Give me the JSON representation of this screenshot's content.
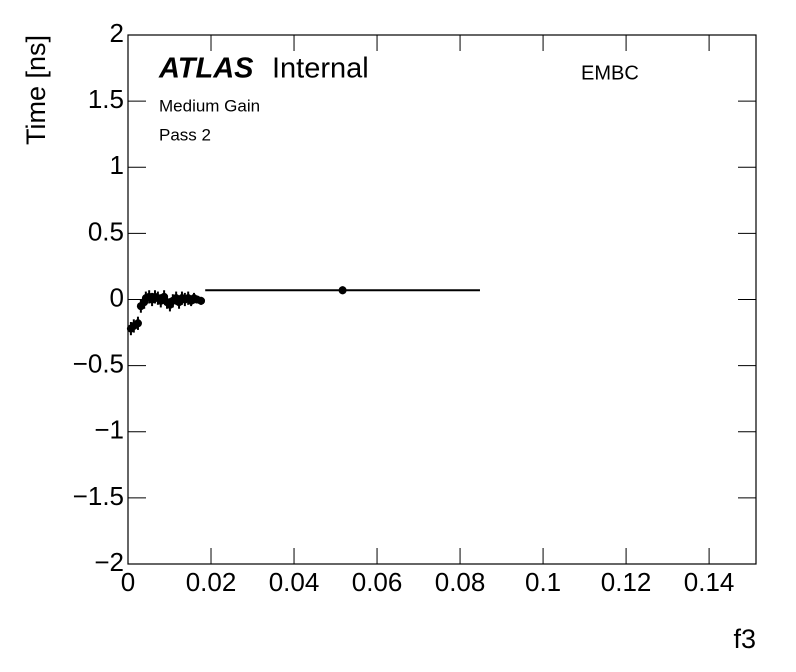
{
  "chart_data": {
    "type": "scatter",
    "experiment": "ATLAS",
    "status": "Internal",
    "region": "EMBC",
    "annotations": [
      "Medium Gain",
      "Pass 2"
    ],
    "xlabel": "f3",
    "ylabel": "Time [ns]",
    "x": [
      0.0007,
      0.0014,
      0.0024,
      0.0031,
      0.0039,
      0.0043,
      0.0051,
      0.0058,
      0.0065,
      0.0072,
      0.0079,
      0.0087,
      0.0094,
      0.0101,
      0.0108,
      0.0116,
      0.0123,
      0.013,
      0.0137,
      0.0145,
      0.0152,
      0.0159,
      0.0166,
      0.0176,
      0.0517
    ],
    "xerr": [
      0.0003,
      0.0003,
      0.0003,
      0.0003,
      0.0003,
      0.0003,
      0.0003,
      0.0003,
      0.0003,
      0.0003,
      0.0003,
      0.0003,
      0.0003,
      0.0003,
      0.0003,
      0.0003,
      0.0003,
      0.0003,
      0.0003,
      0.0003,
      0.0003,
      0.0003,
      0.0003,
      0.0005,
      0.0331
    ],
    "series": [
      {
        "name": "Time",
        "color": "#000000",
        "values": [
          -0.22,
          -0.2,
          -0.18,
          -0.05,
          -0.02,
          0.01,
          0.02,
          0.0,
          0.02,
          0.01,
          -0.01,
          0.02,
          -0.02,
          -0.04,
          -0.01,
          0.01,
          -0.02,
          0.01,
          0.0,
          0.01,
          -0.01,
          0.01,
          0.0,
          -0.01,
          0.07
        ],
        "yerr": [
          0.05,
          0.05,
          0.05,
          0.05,
          0.05,
          0.05,
          0.05,
          0.05,
          0.05,
          0.05,
          0.05,
          0.05,
          0.05,
          0.05,
          0.05,
          0.05,
          0.05,
          0.05,
          0.05,
          0.05,
          0.04,
          0.04,
          0.03,
          0.03,
          0.03
        ]
      }
    ],
    "xlim": [
      0,
      0.1513
    ],
    "ylim": [
      -2,
      2
    ],
    "xticks": [
      0,
      0.02,
      0.04,
      0.06,
      0.08,
      0.1,
      0.12,
      0.14
    ],
    "yticks": [
      {
        "value": -2,
        "label": "−2"
      },
      {
        "value": -1.5,
        "label": "−1.5"
      },
      {
        "value": -1,
        "label": "−1"
      },
      {
        "value": -0.5,
        "label": "−0.5"
      },
      0,
      0.5,
      1,
      1.5,
      2
    ],
    "grid": false
  }
}
